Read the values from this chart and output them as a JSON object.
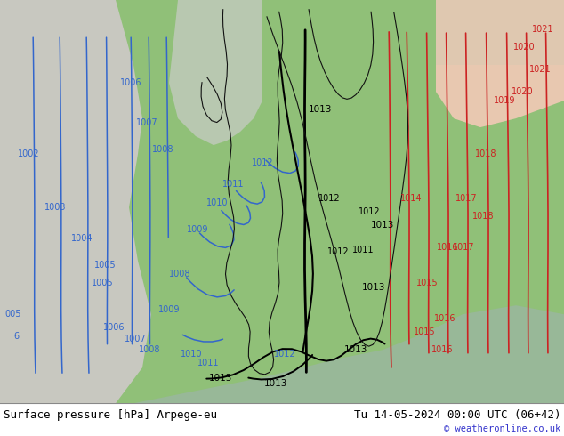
{
  "title_left": "Surface pressure [hPa] Arpege-eu",
  "title_right": "Tu 14-05-2024 00:00 UTC (06+42)",
  "credit": "© weatheronline.co.uk",
  "footer_bg": "#ffffff",
  "fig_width": 6.34,
  "fig_height": 4.9,
  "dpi": 100,
  "map_green": "#90c078",
  "map_green_light": "#a8d090",
  "map_grey": "#c8c8c0",
  "map_pink": "#e8c8b0",
  "sea_color": "#a0c8a0",
  "border_color": "#000000",
  "blue_isobar": "#3366cc",
  "red_isobar": "#cc2222",
  "black_isobar": "#000000",
  "footer_text_color": "#000000",
  "footer_credit_color": "#3333cc"
}
